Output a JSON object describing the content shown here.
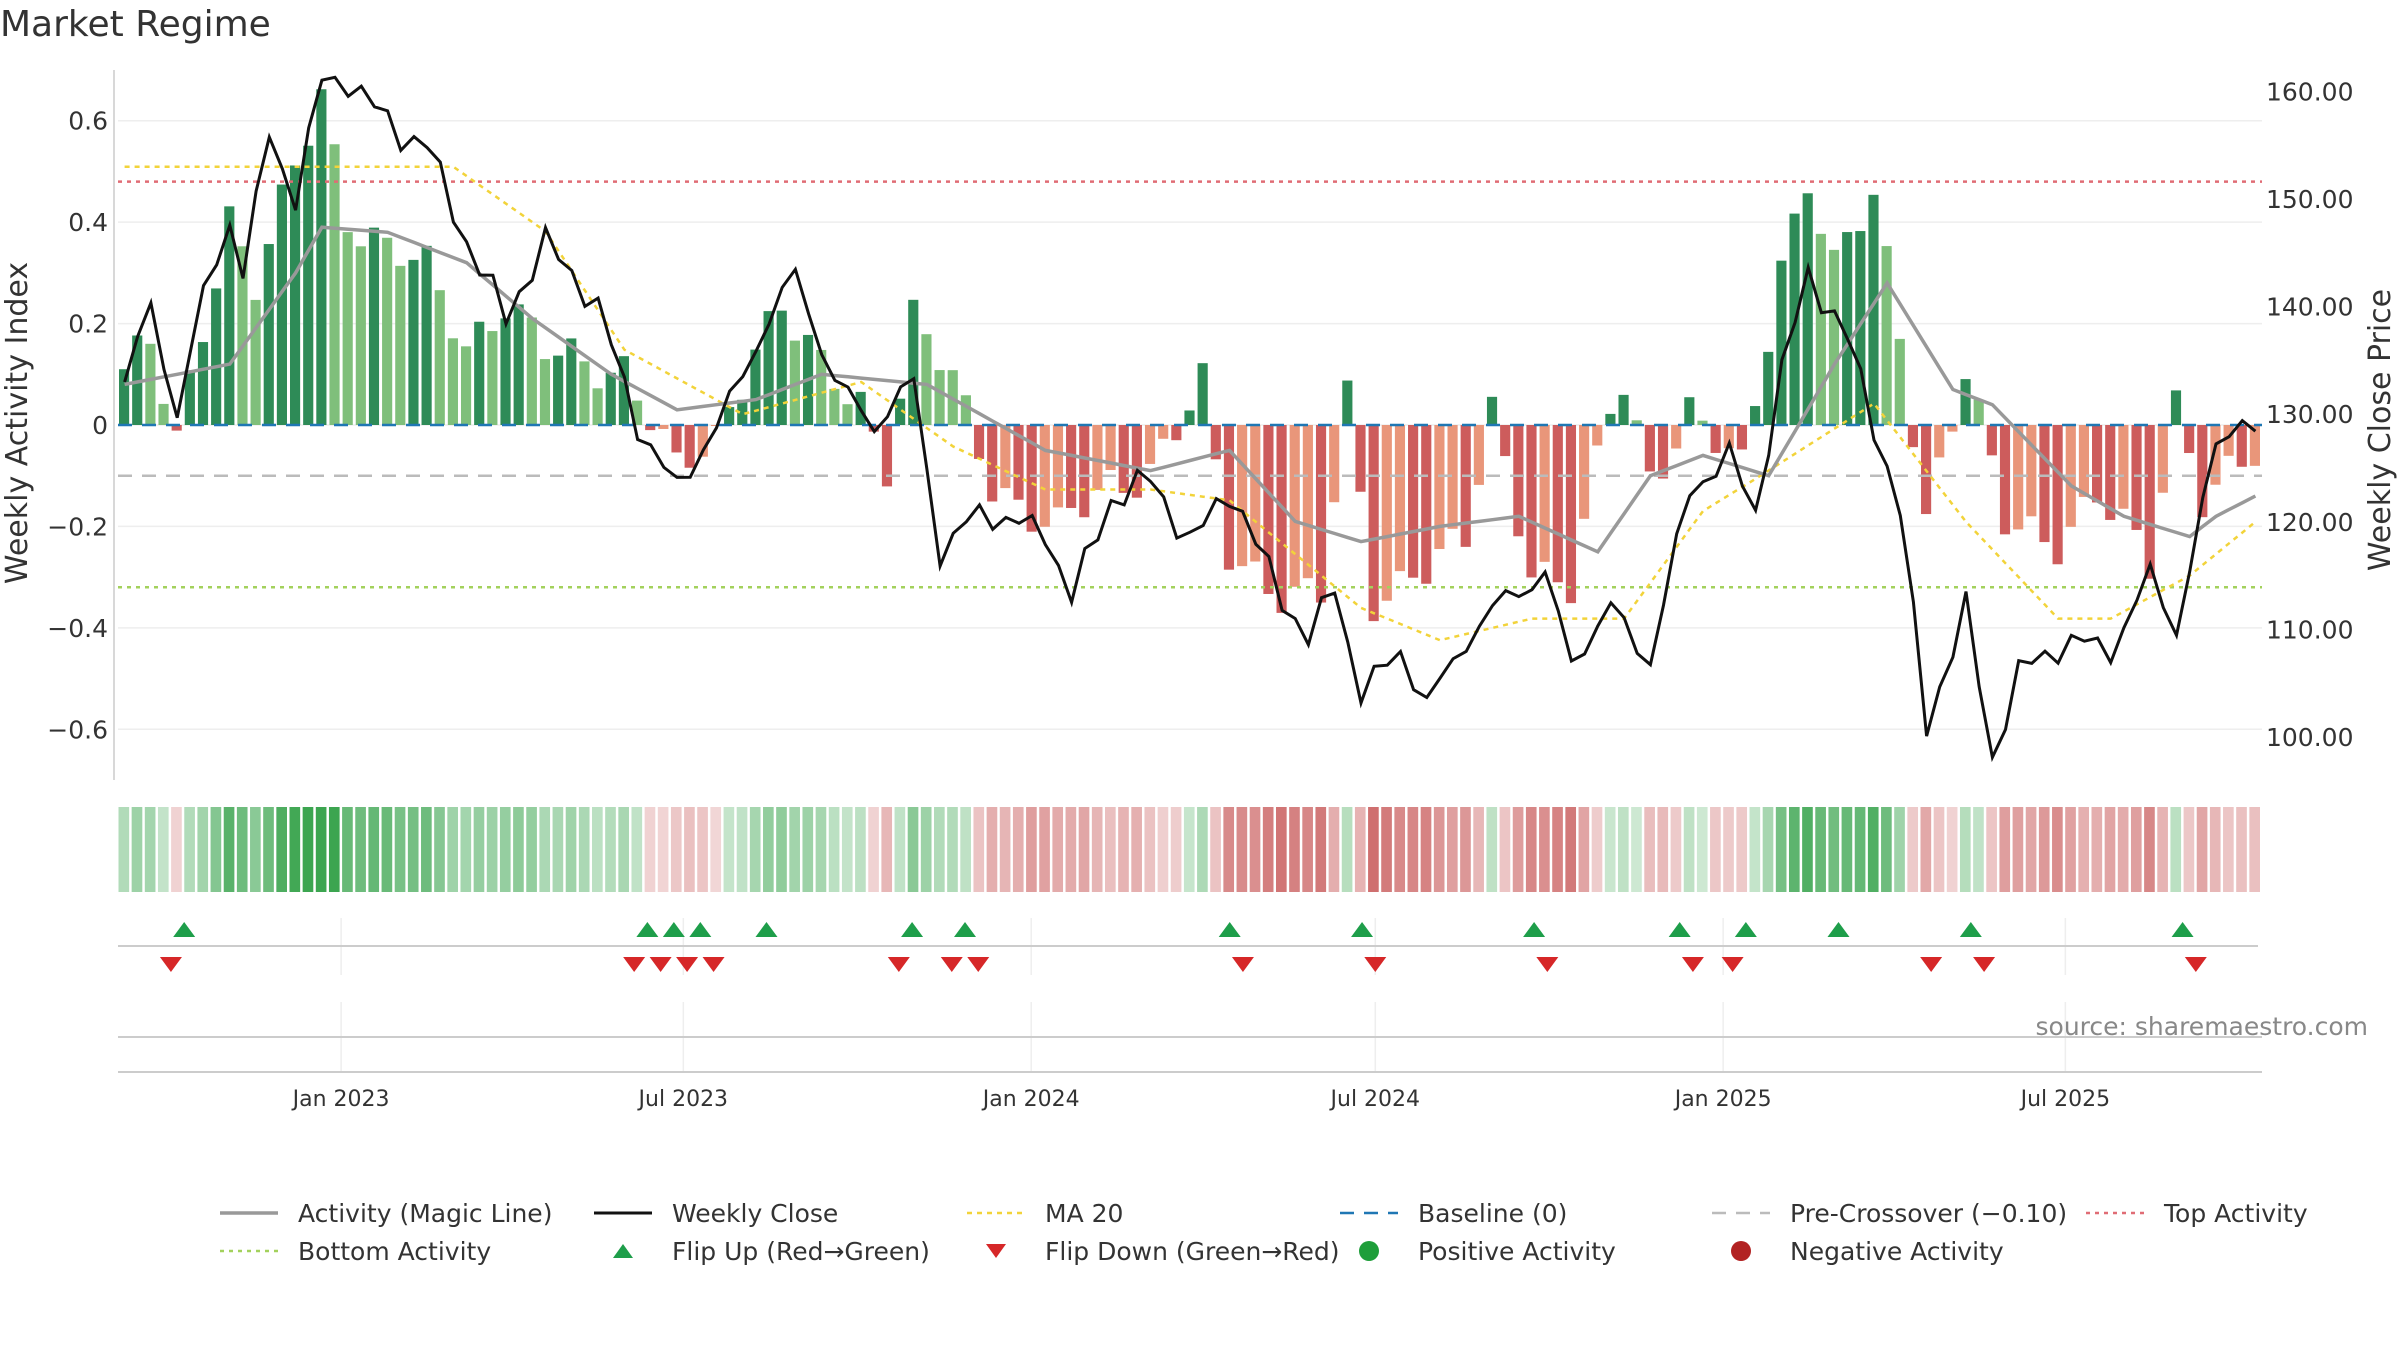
{
  "chart_data": {
    "type": "bar",
    "title": "Market Regime",
    "ylabel_left": "Weekly Activity Index",
    "ylabel_right": "Weekly Close Price",
    "source": "source: sharemaestro.com",
    "left_axis": {
      "range": [
        -0.7,
        0.7
      ],
      "ticks": [
        0.6,
        0.4,
        0.2,
        0,
        -0.2,
        -0.4,
        -0.6
      ],
      "tick_labels": [
        "0.6",
        "0.4",
        "0.2",
        "0",
        "−0.2",
        "−0.4",
        "−0.6"
      ]
    },
    "right_axis": {
      "range": [
        96,
        162
      ],
      "ticks": [
        160,
        150,
        140,
        130,
        120,
        110,
        100
      ],
      "tick_labels": [
        "160.00",
        "150.00",
        "140.00",
        "130.00",
        "120.00",
        "110.00",
        "100.00"
      ]
    },
    "x_axis": {
      "start": "2022-09-05",
      "end": "2025-10-13",
      "ticks": [
        {
          "date": "2023-01-01",
          "label": "Jan 2023"
        },
        {
          "date": "2023-07-01",
          "label": "Jul 2023"
        },
        {
          "date": "2024-01-01",
          "label": "Jan 2024"
        },
        {
          "date": "2024-07-01",
          "label": "Jul 2024"
        },
        {
          "date": "2025-01-01",
          "label": "Jan 2025"
        },
        {
          "date": "2025-07-01",
          "label": "Jul 2025"
        }
      ]
    },
    "reference_lines": {
      "baseline": 0,
      "pre_crossover": -0.1,
      "top_activity": 0.48,
      "bottom_activity": -0.32
    },
    "activity_keyframes": [
      {
        "date": "2022-09-05",
        "value": 0.11
      },
      {
        "date": "2022-09-19",
        "value": 0.15
      },
      {
        "date": "2022-10-03",
        "value": -0.04
      },
      {
        "date": "2022-10-17",
        "value": 0.2
      },
      {
        "date": "2022-10-31",
        "value": 0.42
      },
      {
        "date": "2022-11-14",
        "value": 0.28
      },
      {
        "date": "2022-11-28",
        "value": 0.42
      },
      {
        "date": "2022-12-19",
        "value": 0.65
      },
      {
        "date": "2023-01-02",
        "value": 0.42
      },
      {
        "date": "2023-01-23",
        "value": 0.35
      },
      {
        "date": "2023-02-13",
        "value": 0.3
      },
      {
        "date": "2023-03-06",
        "value": 0.16
      },
      {
        "date": "2023-03-27",
        "value": 0.25
      },
      {
        "date": "2023-04-17",
        "value": 0.14
      },
      {
        "date": "2023-05-08",
        "value": 0.12
      },
      {
        "date": "2023-05-29",
        "value": 0.12
      },
      {
        "date": "2023-06-12",
        "value": 0.02
      },
      {
        "date": "2023-06-26",
        "value": -0.1
      },
      {
        "date": "2023-07-17",
        "value": -0.03
      },
      {
        "date": "2023-08-07",
        "value": 0.17
      },
      {
        "date": "2023-08-21",
        "value": 0.23
      },
      {
        "date": "2023-09-11",
        "value": 0.1
      },
      {
        "date": "2023-10-02",
        "value": 0.05
      },
      {
        "date": "2023-10-16",
        "value": -0.07
      },
      {
        "date": "2023-10-30",
        "value": 0.21
      },
      {
        "date": "2023-11-20",
        "value": 0.08
      },
      {
        "date": "2023-12-11",
        "value": -0.11
      },
      {
        "date": "2024-01-15",
        "value": -0.21
      },
      {
        "date": "2024-02-12",
        "value": -0.12
      },
      {
        "date": "2024-03-04",
        "value": -0.08
      },
      {
        "date": "2024-04-01",
        "value": 0.07
      },
      {
        "date": "2024-04-15",
        "value": -0.26
      },
      {
        "date": "2024-05-13",
        "value": -0.32
      },
      {
        "date": "2024-06-03",
        "value": -0.34
      },
      {
        "date": "2024-06-17",
        "value": 0.04
      },
      {
        "date": "2024-07-01",
        "value": -0.35
      },
      {
        "date": "2024-07-22",
        "value": -0.28
      },
      {
        "date": "2024-08-19",
        "value": -0.24
      },
      {
        "date": "2024-09-02",
        "value": 0.02
      },
      {
        "date": "2024-09-23",
        "value": -0.27
      },
      {
        "date": "2024-10-14",
        "value": -0.32
      },
      {
        "date": "2024-11-04",
        "value": 0.02
      },
      {
        "date": "2024-11-11",
        "value": 0.08
      },
      {
        "date": "2024-11-25",
        "value": -0.1
      },
      {
        "date": "2024-12-16",
        "value": 0.03
      },
      {
        "date": "2025-01-13",
        "value": -0.1
      },
      {
        "date": "2025-02-03",
        "value": 0.32
      },
      {
        "date": "2025-02-17",
        "value": 0.5
      },
      {
        "date": "2025-03-03",
        "value": 0.31
      },
      {
        "date": "2025-03-24",
        "value": 0.44
      },
      {
        "date": "2025-04-07",
        "value": 0.18
      },
      {
        "date": "2025-04-21",
        "value": -0.17
      },
      {
        "date": "2025-05-12",
        "value": 0.11
      },
      {
        "date": "2025-06-02",
        "value": -0.2
      },
      {
        "date": "2025-06-30",
        "value": -0.22
      },
      {
        "date": "2025-07-21",
        "value": -0.14
      },
      {
        "date": "2025-08-18",
        "value": -0.28
      },
      {
        "date": "2025-09-01",
        "value": 0.05
      },
      {
        "date": "2025-09-15",
        "value": -0.13
      },
      {
        "date": "2025-10-13",
        "value": -0.07
      }
    ],
    "magic_line_keyframes": [
      {
        "date": "2022-09-05",
        "value": 0.08
      },
      {
        "date": "2022-10-31",
        "value": 0.12
      },
      {
        "date": "2022-12-05",
        "value": 0.3
      },
      {
        "date": "2022-12-19",
        "value": 0.39
      },
      {
        "date": "2023-01-23",
        "value": 0.38
      },
      {
        "date": "2023-03-06",
        "value": 0.32
      },
      {
        "date": "2023-04-10",
        "value": 0.21
      },
      {
        "date": "2023-05-22",
        "value": 0.1
      },
      {
        "date": "2023-06-26",
        "value": 0.03
      },
      {
        "date": "2023-08-07",
        "value": 0.05
      },
      {
        "date": "2023-09-11",
        "value": 0.1
      },
      {
        "date": "2023-11-06",
        "value": 0.08
      },
      {
        "date": "2024-01-08",
        "value": -0.05
      },
      {
        "date": "2024-03-04",
        "value": -0.09
      },
      {
        "date": "2024-04-15",
        "value": -0.05
      },
      {
        "date": "2024-05-20",
        "value": -0.19
      },
      {
        "date": "2024-06-24",
        "value": -0.23
      },
      {
        "date": "2024-08-05",
        "value": -0.2
      },
      {
        "date": "2024-09-16",
        "value": -0.18
      },
      {
        "date": "2024-10-28",
        "value": -0.25
      },
      {
        "date": "2024-11-25",
        "value": -0.1
      },
      {
        "date": "2024-12-23",
        "value": -0.06
      },
      {
        "date": "2025-01-27",
        "value": -0.1
      },
      {
        "date": "2025-03-03",
        "value": 0.12
      },
      {
        "date": "2025-03-31",
        "value": 0.28
      },
      {
        "date": "2025-05-05",
        "value": 0.07
      },
      {
        "date": "2025-05-26",
        "value": 0.04
      },
      {
        "date": "2025-07-07",
        "value": -0.12
      },
      {
        "date": "2025-08-04",
        "value": -0.18
      },
      {
        "date": "2025-09-08",
        "value": -0.22
      },
      {
        "date": "2025-09-22",
        "value": -0.18
      },
      {
        "date": "2025-10-13",
        "value": -0.14
      }
    ],
    "close_keyframes": [
      {
        "date": "2022-09-05",
        "value": 133
      },
      {
        "date": "2022-09-19",
        "value": 140
      },
      {
        "date": "2022-10-03",
        "value": 130
      },
      {
        "date": "2022-10-17",
        "value": 141
      },
      {
        "date": "2022-10-31",
        "value": 148
      },
      {
        "date": "2022-11-07",
        "value": 143
      },
      {
        "date": "2022-11-21",
        "value": 156
      },
      {
        "date": "2022-12-05",
        "value": 150
      },
      {
        "date": "2022-12-19",
        "value": 161
      },
      {
        "date": "2023-01-02",
        "value": 161
      },
      {
        "date": "2023-01-30",
        "value": 156
      },
      {
        "date": "2023-02-13",
        "value": 155
      },
      {
        "date": "2023-03-06",
        "value": 146
      },
      {
        "date": "2023-03-27",
        "value": 139
      },
      {
        "date": "2023-04-17",
        "value": 146
      },
      {
        "date": "2023-05-15",
        "value": 140
      },
      {
        "date": "2023-06-05",
        "value": 129
      },
      {
        "date": "2023-06-26",
        "value": 123
      },
      {
        "date": "2023-07-24",
        "value": 131
      },
      {
        "date": "2023-08-14",
        "value": 139
      },
      {
        "date": "2023-08-28",
        "value": 143
      },
      {
        "date": "2023-09-18",
        "value": 133
      },
      {
        "date": "2023-10-09",
        "value": 129
      },
      {
        "date": "2023-10-30",
        "value": 133
      },
      {
        "date": "2023-11-13",
        "value": 117
      },
      {
        "date": "2023-12-04",
        "value": 121
      },
      {
        "date": "2024-01-08",
        "value": 119
      },
      {
        "date": "2024-01-22",
        "value": 113
      },
      {
        "date": "2024-02-12",
        "value": 122
      },
      {
        "date": "2024-03-04",
        "value": 124
      },
      {
        "date": "2024-03-25",
        "value": 118
      },
      {
        "date": "2024-04-15",
        "value": 123
      },
      {
        "date": "2024-05-13",
        "value": 113
      },
      {
        "date": "2024-05-27",
        "value": 109
      },
      {
        "date": "2024-06-10",
        "value": 114
      },
      {
        "date": "2024-06-24",
        "value": 104
      },
      {
        "date": "2024-07-15",
        "value": 108
      },
      {
        "date": "2024-07-29",
        "value": 103
      },
      {
        "date": "2024-08-19",
        "value": 109
      },
      {
        "date": "2024-09-09",
        "value": 113
      },
      {
        "date": "2024-09-30",
        "value": 115
      },
      {
        "date": "2024-10-14",
        "value": 107
      },
      {
        "date": "2024-11-04",
        "value": 112
      },
      {
        "date": "2024-11-25",
        "value": 107
      },
      {
        "date": "2024-12-16",
        "value": 123
      },
      {
        "date": "2025-01-06",
        "value": 126
      },
      {
        "date": "2025-01-20",
        "value": 121
      },
      {
        "date": "2025-02-03",
        "value": 134
      },
      {
        "date": "2025-02-17",
        "value": 143
      },
      {
        "date": "2025-03-10",
        "value": 137
      },
      {
        "date": "2025-03-24",
        "value": 129
      },
      {
        "date": "2025-04-07",
        "value": 121
      },
      {
        "date": "2025-04-21",
        "value": 101
      },
      {
        "date": "2025-05-12",
        "value": 112
      },
      {
        "date": "2025-05-26",
        "value": 98
      },
      {
        "date": "2025-06-09",
        "value": 106
      },
      {
        "date": "2025-07-07",
        "value": 109
      },
      {
        "date": "2025-07-28",
        "value": 108
      },
      {
        "date": "2025-08-18",
        "value": 115
      },
      {
        "date": "2025-09-01",
        "value": 110
      },
      {
        "date": "2025-09-22",
        "value": 127
      },
      {
        "date": "2025-10-06",
        "value": 130
      },
      {
        "date": "2025-10-13",
        "value": 128
      }
    ],
    "ma20_keyframes": [
      {
        "date": "2022-09-05",
        "value": 153
      },
      {
        "date": "2023-02-27",
        "value": 153
      },
      {
        "date": "2023-04-17",
        "value": 147
      },
      {
        "date": "2023-05-29",
        "value": 136
      },
      {
        "date": "2023-07-31",
        "value": 130
      },
      {
        "date": "2023-10-02",
        "value": 133
      },
      {
        "date": "2023-11-20",
        "value": 127
      },
      {
        "date": "2024-01-08",
        "value": 123
      },
      {
        "date": "2024-03-04",
        "value": 123
      },
      {
        "date": "2024-04-15",
        "value": 122
      },
      {
        "date": "2024-06-24",
        "value": 112
      },
      {
        "date": "2024-08-05",
        "value": 109
      },
      {
        "date": "2024-09-23",
        "value": 111
      },
      {
        "date": "2024-11-11",
        "value": 111
      },
      {
        "date": "2024-12-23",
        "value": 121
      },
      {
        "date": "2025-01-20",
        "value": 124
      },
      {
        "date": "2025-03-24",
        "value": 131
      },
      {
        "date": "2025-05-12",
        "value": 120
      },
      {
        "date": "2025-06-30",
        "value": 111
      },
      {
        "date": "2025-07-28",
        "value": 111
      },
      {
        "date": "2025-09-08",
        "value": 115
      },
      {
        "date": "2025-10-13",
        "value": 120
      }
    ],
    "flip_up_dates": [
      "2022-10-10",
      "2023-06-12",
      "2023-06-26",
      "2023-07-10",
      "2023-08-14",
      "2023-10-30",
      "2023-11-27",
      "2024-04-15",
      "2024-06-24",
      "2024-09-23",
      "2024-12-09",
      "2025-01-13",
      "2025-03-03",
      "2025-05-12",
      "2025-09-01"
    ],
    "flip_down_dates": [
      "2022-10-03",
      "2023-06-05",
      "2023-06-19",
      "2023-07-03",
      "2023-07-17",
      "2023-10-23",
      "2023-11-20",
      "2023-12-04",
      "2024-04-22",
      "2024-07-01",
      "2024-09-30",
      "2024-12-16",
      "2025-01-06",
      "2025-04-21",
      "2025-05-19",
      "2025-09-08"
    ],
    "legend": [
      {
        "key": "magic",
        "label": "Activity (Magic Line)"
      },
      {
        "key": "close",
        "label": "Weekly Close"
      },
      {
        "key": "ma20",
        "label": "MA 20"
      },
      {
        "key": "baseline",
        "label": "Baseline (0)"
      },
      {
        "key": "precross",
        "label": "Pre-Crossover (−0.10)"
      },
      {
        "key": "top",
        "label": "Top Activity"
      },
      {
        "key": "bottom",
        "label": "Bottom Activity"
      },
      {
        "key": "flipup",
        "label": "Flip Up (Red→Green)"
      },
      {
        "key": "flipdown",
        "label": "Flip Down (Green→Red)"
      },
      {
        "key": "pos",
        "label": "Positive Activity"
      },
      {
        "key": "neg",
        "label": "Negative Activity"
      }
    ],
    "colors": {
      "positive_strong": "#2e8b57",
      "positive_weak": "#7fbf7b",
      "negative_strong": "#cd5c5c",
      "negative_weak": "#e9967a",
      "magic_line": "#999999",
      "close": "#111111",
      "ma20": "#f2d33a",
      "baseline": "#1f77b4",
      "pre_crossover": "#bbbbbb",
      "top": "#e06c75",
      "bottom": "#a3d15c",
      "flip_up": "#1e9e4a",
      "flip_down": "#d62728",
      "positive_dot": "#1e9e3a",
      "negative_dot": "#b22222"
    }
  }
}
